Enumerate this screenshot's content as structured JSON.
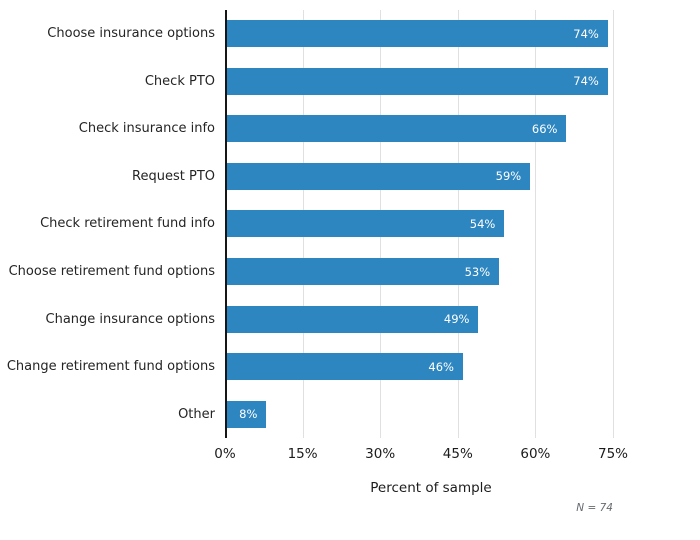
{
  "chart_data": {
    "type": "bar",
    "orientation": "horizontal",
    "title": "",
    "xlabel": "Percent of sample",
    "ylabel": "",
    "categories": [
      "Choose insurance options",
      "Check PTO",
      "Check insurance info",
      "Request PTO",
      "Check retirement fund info",
      "Choose retirement fund options",
      "Change insurance options",
      "Change retirement fund options",
      "Other"
    ],
    "values": [
      74,
      74,
      66,
      59,
      54,
      53,
      49,
      46,
      8
    ],
    "value_labels": [
      "74%",
      "74%",
      "66%",
      "59%",
      "54%",
      "53%",
      "49%",
      "46%",
      "8%"
    ],
    "xlim": [
      0,
      75
    ],
    "xticks": [
      {
        "value": 0,
        "label": "0%"
      },
      {
        "value": 15,
        "label": "15%"
      },
      {
        "value": 30,
        "label": "30%"
      },
      {
        "value": 45,
        "label": "45%"
      },
      {
        "value": 60,
        "label": "60%"
      },
      {
        "value": 75,
        "label": "75%"
      }
    ],
    "grid": "vertical-only",
    "legend": "none",
    "note": "N = 74",
    "colors": {
      "bar": "#2e86c1",
      "bar_value_text": "#ffffff",
      "gridline": "#e0e0e0",
      "axis_line": "#161616",
      "label_text": "#242424",
      "note_text": "#666a70"
    }
  }
}
